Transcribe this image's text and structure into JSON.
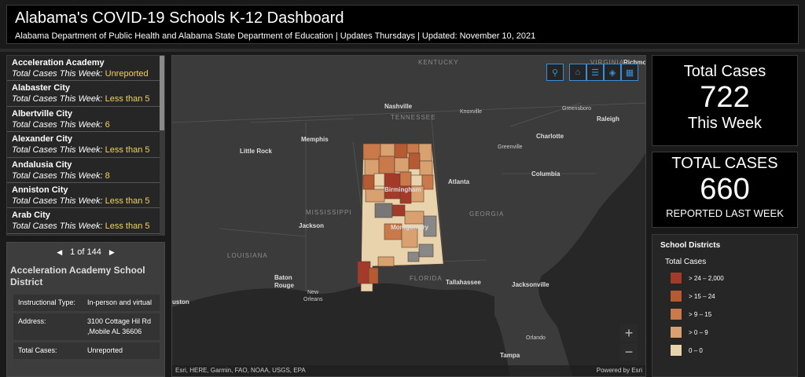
{
  "header": {
    "title": "Alabama's COVID-19 Schools K-12 Dashboard",
    "subtitle": "Alabama Department of Public Health and Alabama State Department of Education | Updates Thursdays | Updated: November 10, 2021"
  },
  "list": {
    "line_label": "Total Cases This Week:",
    "items": [
      {
        "name": "Acceleration Academy",
        "value": "Unreported"
      },
      {
        "name": "Alabaster City",
        "value": "Less than 5"
      },
      {
        "name": "Albertville City",
        "value": "6"
      },
      {
        "name": "Alexander City",
        "value": "Less than 5"
      },
      {
        "name": "Andalusia City",
        "value": "8"
      },
      {
        "name": "Anniston City",
        "value": "Less than 5"
      },
      {
        "name": "Arab City",
        "value": "Less than 5"
      }
    ]
  },
  "detail": {
    "pager": "1 of 144",
    "title": "Acceleration Academy School District",
    "rows": [
      {
        "key": "Instructional Type:",
        "value": "In-person and virtual"
      },
      {
        "key": "Address:",
        "value": "3100 Cottage Hil Rd ,Mobile AL 36606"
      },
      {
        "key": "Total Cases:",
        "value": "Unreported"
      }
    ]
  },
  "map": {
    "labels": {
      "kentucky": "KENTUCKY",
      "virginia": "VIRGINIA",
      "richmond": "Richmo",
      "nashville": "Nashville",
      "knoxville": "Knoxville",
      "tennessee": "TENNESSEE",
      "greensboro": "Greensboro",
      "raleigh": "Raleigh",
      "memphis": "Memphis",
      "charlotte": "Charlotte",
      "little_rock": "Little Rock",
      "greenville": "Greenville",
      "columbia": "Columbia",
      "birmingham": "Birmingham",
      "atlanta": "Atlanta",
      "mississippi": "MISSISSIPPI",
      "georgia": "GEORGIA",
      "jackson": "Jackson",
      "montgomery": "Montgomery",
      "louisiana": "LOUISIANA",
      "baton_rouge_1": "Baton",
      "baton_rouge_2": "Rouge",
      "florida": "FLORIDA",
      "tallahassee": "Tallahassee",
      "jacksonville": "Jacksonville",
      "new_orleans_1": "New",
      "new_orleans_2": "Orleans",
      "houston": "uston",
      "orlando": "Orlando",
      "tampa": "Tampa"
    },
    "attribution": "Esri, HERE, Garmin, FAO, NOAA, USGS, EPA",
    "powered_by": "Powered by Esri",
    "zoom_in": "+",
    "zoom_out": "−",
    "tools": [
      {
        "icon": "search-icon",
        "glyph": "⚲"
      },
      {
        "icon": "home-icon",
        "glyph": "⌂"
      },
      {
        "icon": "list-icon",
        "glyph": "☰"
      },
      {
        "icon": "layers-icon",
        "glyph": "◈"
      },
      {
        "icon": "basemap-gallery-icon",
        "glyph": "▦"
      }
    ]
  },
  "stats": {
    "card1": {
      "top": "Total Cases",
      "value": "722",
      "bottom": "This Week"
    },
    "card2": {
      "top": "TOTAL CASES",
      "value": "660",
      "bottom": "REPORTED LAST WEEK"
    }
  },
  "legend": {
    "title": "School Districts",
    "subtitle": "Total Cases",
    "items": [
      {
        "label": "> 24 – 2,000",
        "color": "#a33a2a"
      },
      {
        "label": "> 15 – 24",
        "color": "#b55a33"
      },
      {
        "label": "> 9 – 15",
        "color": "#c9794a"
      },
      {
        "label": "> 0 – 9",
        "color": "#d9a070"
      },
      {
        "label": "0 – 0",
        "color": "#e8d3ad"
      }
    ]
  }
}
